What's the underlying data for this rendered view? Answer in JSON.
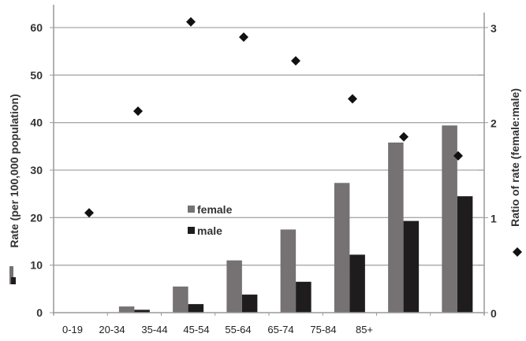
{
  "chart_data": {
    "type": "bar",
    "title": "",
    "xlabel": "",
    "ylabel": "Rate (per 100,000 population)",
    "y2label": "Ratio of rate (female:male)",
    "categories": [
      "0-19",
      "20-34",
      "35-44",
      "45-54",
      "55-64",
      "65-74",
      "75-84",
      "85+"
    ],
    "series": [
      {
        "name": "female",
        "type": "bar",
        "axis": "left",
        "color": "#767273",
        "values": [
          0,
          1.3,
          5.5,
          11.0,
          17.5,
          27.3,
          35.8,
          39.4
        ]
      },
      {
        "name": "male",
        "type": "bar",
        "axis": "left",
        "color": "#1e1c1d",
        "values": [
          0,
          0.6,
          1.8,
          3.8,
          6.5,
          12.2,
          19.3,
          24.5
        ]
      },
      {
        "name": "Ratio of rate (female:male)",
        "type": "scatter",
        "axis": "right",
        "marker": "diamond",
        "color": "#111111",
        "values": [
          1.05,
          2.12,
          3.06,
          2.9,
          2.65,
          2.25,
          1.85,
          1.65
        ]
      }
    ],
    "ylim": [
      0,
      60
    ],
    "y2lim": [
      0,
      3
    ],
    "yticks": [
      0,
      10,
      20,
      30,
      40,
      50,
      60
    ],
    "y2ticks": [
      0,
      1,
      2,
      3
    ],
    "grid": true,
    "legend": {
      "position": "inside-center-left",
      "entries": [
        "female",
        "male"
      ]
    }
  },
  "axes": {
    "left_ticks": [
      "0",
      "10",
      "20",
      "30",
      "40",
      "50",
      "60"
    ],
    "right_ticks": [
      "0",
      "1",
      "2",
      "3"
    ],
    "left_title": "Rate (per 100,000 population)",
    "right_title": "Ratio of rate (female:male)"
  },
  "legend": {
    "female": "female",
    "male": "male"
  }
}
